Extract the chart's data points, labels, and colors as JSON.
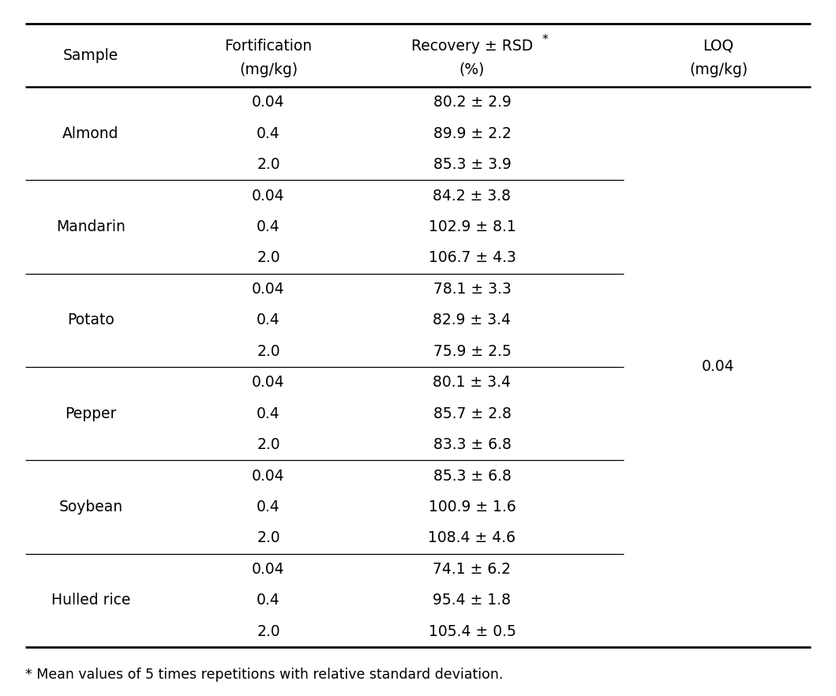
{
  "samples": [
    {
      "name": "Almond",
      "rows": [
        {
          "fort": "0.04",
          "recovery": "80.2 ± 2.9"
        },
        {
          "fort": "0.4",
          "recovery": "89.9 ± 2.2"
        },
        {
          "fort": "2.0",
          "recovery": "85.3 ± 3.9"
        }
      ]
    },
    {
      "name": "Mandarin",
      "rows": [
        {
          "fort": "0.04",
          "recovery": "84.2 ± 3.8"
        },
        {
          "fort": "0.4",
          "recovery": "102.9 ± 8.1"
        },
        {
          "fort": "2.0",
          "recovery": "106.7 ± 4.3"
        }
      ]
    },
    {
      "name": "Potato",
      "rows": [
        {
          "fort": "0.04",
          "recovery": "78.1 ± 3.3"
        },
        {
          "fort": "0.4",
          "recovery": "82.9 ± 3.4"
        },
        {
          "fort": "2.0",
          "recovery": "75.9 ± 2.5"
        }
      ]
    },
    {
      "name": "Pepper",
      "rows": [
        {
          "fort": "0.04",
          "recovery": "80.1 ± 3.4"
        },
        {
          "fort": "0.4",
          "recovery": "85.7 ± 2.8"
        },
        {
          "fort": "2.0",
          "recovery": "83.3 ± 6.8"
        }
      ]
    },
    {
      "name": "Soybean",
      "rows": [
        {
          "fort": "0.04",
          "recovery": "85.3 ± 6.8"
        },
        {
          "fort": "0.4",
          "recovery": "100.9 ± 1.6"
        },
        {
          "fort": "2.0",
          "recovery": "108.4 ± 4.6"
        }
      ]
    },
    {
      "name": "Hulled rice",
      "rows": [
        {
          "fort": "0.04",
          "recovery": "74.1 ± 6.2"
        },
        {
          "fort": "0.4",
          "recovery": "95.4 ± 1.8"
        },
        {
          "fort": "2.0",
          "recovery": "105.4 ± 0.5"
        }
      ]
    }
  ],
  "loq_value": "0.04",
  "footnote": "* Mean values of 5 times repetitions with relative standard deviation.",
  "bg_color": "#ffffff",
  "text_color": "#000000",
  "line_color": "#000000",
  "font_size": 13.5
}
